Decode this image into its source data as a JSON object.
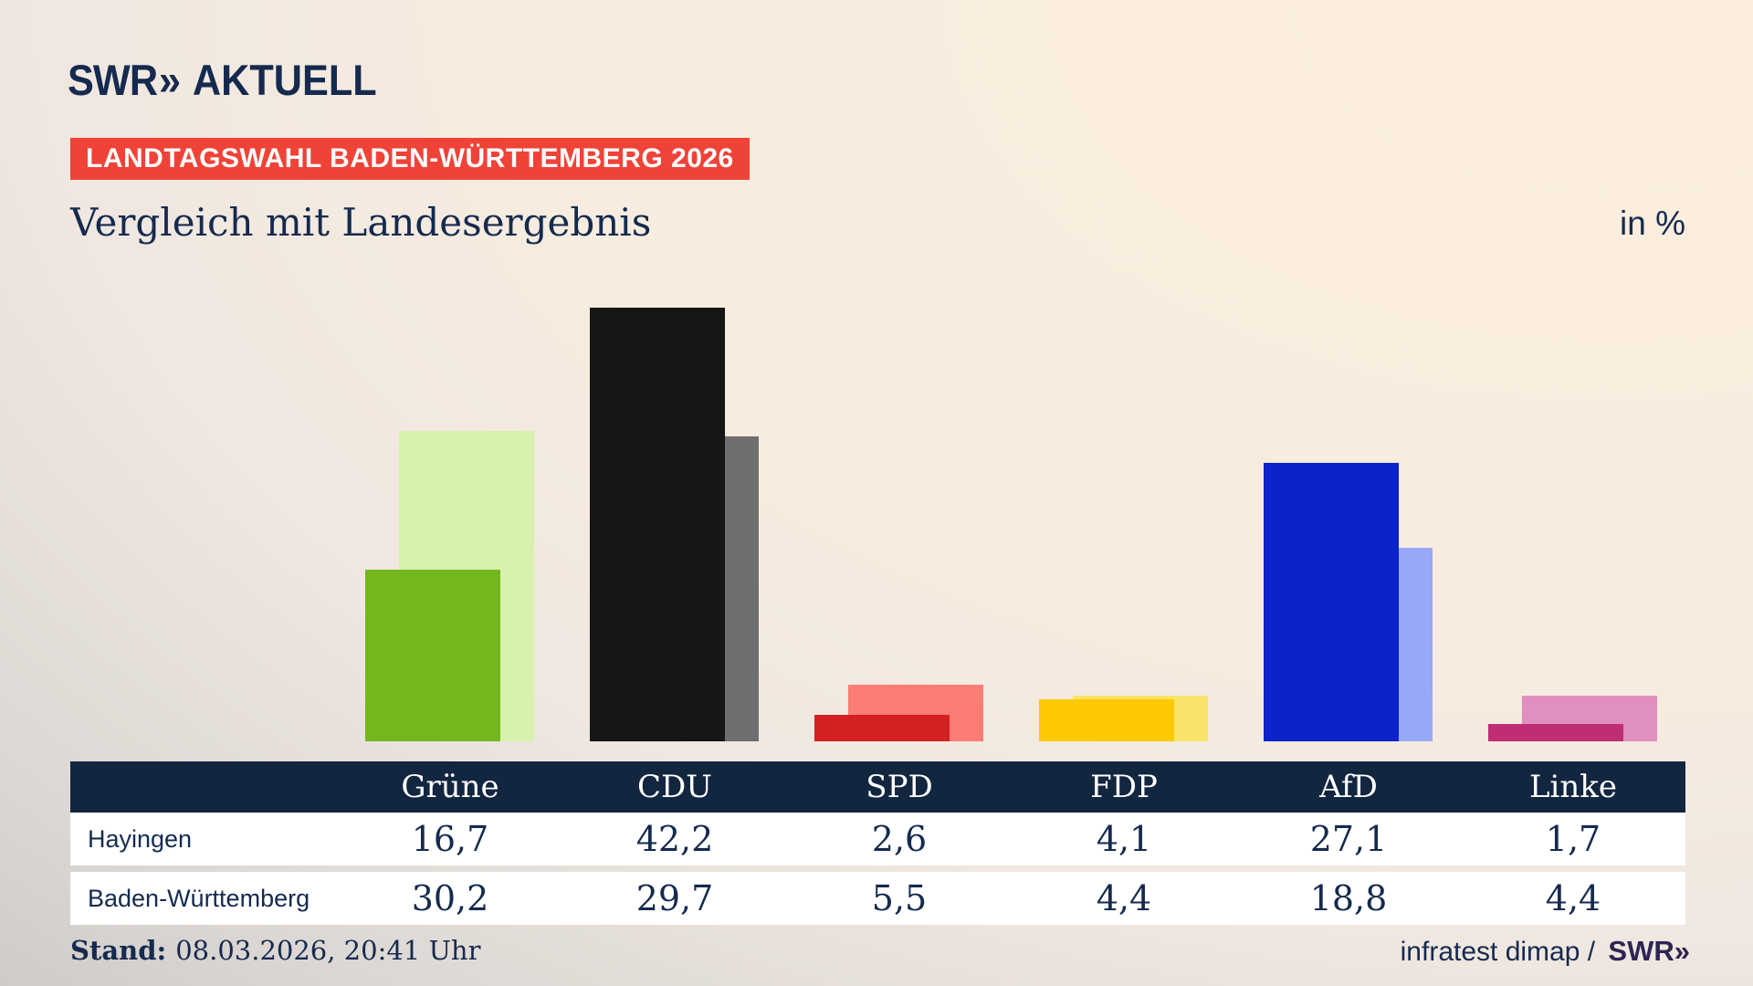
{
  "header": {
    "logo_swr": "SWR",
    "logo_chevrons": "»",
    "logo_aktuell": "AKTUELL",
    "badge": "LANDTAGSWAHL BADEN-WÜRTTEMBERG 2026",
    "title": "Vergleich mit Landesergebnis",
    "unit_label": "in %"
  },
  "chart_data": {
    "type": "bar",
    "categories": [
      "Grüne",
      "CDU",
      "SPD",
      "FDP",
      "AfD",
      "Linke"
    ],
    "series": [
      {
        "name": "Hayingen",
        "values": [
          16.7,
          42.2,
          2.6,
          4.1,
          27.1,
          1.7
        ]
      },
      {
        "name": "Baden-Württemberg",
        "values": [
          30.2,
          29.7,
          5.5,
          4.4,
          18.8,
          4.4
        ]
      }
    ],
    "colors": {
      "front": [
        "#74b71d",
        "#161615",
        "#d32121",
        "#fdc900",
        "#0c22cb",
        "#bf2d74"
      ],
      "back": [
        "#d7f2ae",
        "#6f6f6f",
        "#f97c75",
        "#fae36a",
        "#98a8f8",
        "#e08fc0"
      ]
    },
    "title": "Vergleich mit Landesergebnis",
    "xlabel": "",
    "ylabel": "in %",
    "ylim": [
      0,
      45
    ],
    "grid": false,
    "legend_position": "table-below"
  },
  "table": {
    "columns": [
      "Grüne",
      "CDU",
      "SPD",
      "FDP",
      "AfD",
      "Linke"
    ],
    "rows": [
      {
        "label": "Hayingen",
        "values": [
          "16,7",
          "42,2",
          "2,6",
          "4,1",
          "27,1",
          "1,7"
        ]
      },
      {
        "label": "Baden-Württemberg",
        "values": [
          "30,2",
          "29,7",
          "5,5",
          "4,4",
          "18,8",
          "4,4"
        ]
      }
    ]
  },
  "footer": {
    "stand_label": "Stand:",
    "stand_value": "08.03.2026, 20:41 Uhr",
    "source": "infratest dimap /",
    "source_brand_swr": "SWR",
    "source_brand_chevrons": "»"
  },
  "colors": {
    "navy_text": "#152a4e",
    "badge_red": "#ef4338",
    "table_header_bg": "#132640",
    "row_bg": "#ffffff",
    "brand_purple": "#2e2453",
    "background_cream": "#fceede",
    "background_gray": "#c2c0be"
  }
}
